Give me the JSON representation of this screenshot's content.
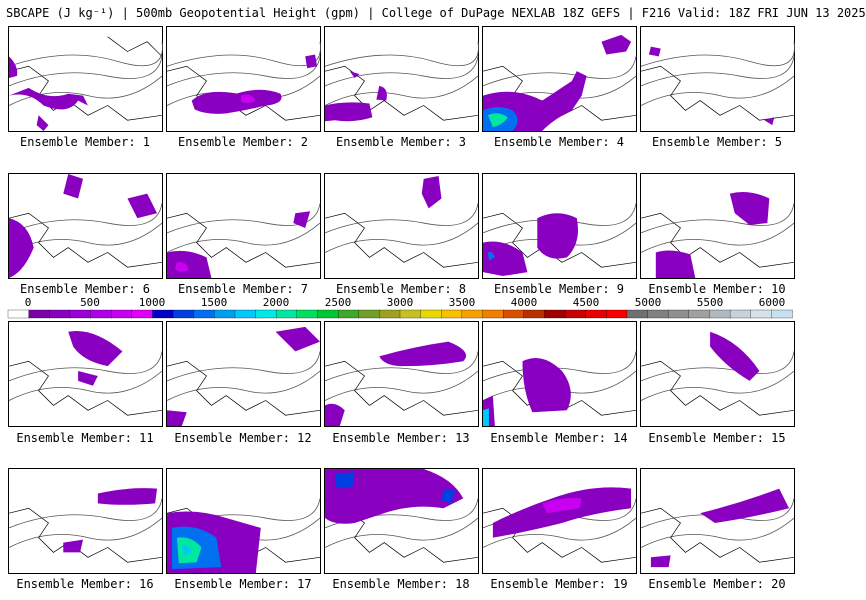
{
  "header": {
    "title": "SBCAPE (J kg⁻¹) | 500mb Geopotential Height (gpm) | College of DuPage NEXLAB 18Z GEFS | F216 Valid: 18Z FRI JUN 13 2025"
  },
  "colorbar": {
    "ticks": [
      "0",
      "500",
      "1000",
      "1500",
      "2000",
      "2500",
      "3000",
      "3500",
      "4000",
      "4500",
      "5000",
      "5500",
      "6000"
    ],
    "colors": [
      "#ffffff",
      "#7a00a8",
      "#8a00c0",
      "#9c00d8",
      "#b000e8",
      "#c800f0",
      "#e000f8",
      "#0000c8",
      "#0040e0",
      "#0070f0",
      "#00a0f0",
      "#00c8f8",
      "#00e8e8",
      "#00e8a0",
      "#00e060",
      "#00c830",
      "#40a828",
      "#70a028",
      "#a0a020",
      "#c8c020",
      "#e8d800",
      "#f8c000",
      "#f8a000",
      "#f08000",
      "#d85000",
      "#b83000",
      "#a00000",
      "#c80000",
      "#e80000",
      "#f80000",
      "#707070",
      "#808080",
      "#909090",
      "#a0a0a0",
      "#b0b8c0",
      "#c8d0d8",
      "#d8e0e8",
      "#c8e0f0"
    ]
  },
  "members": [
    {
      "label": "Ensemble Member: 1"
    },
    {
      "label": "Ensemble Member: 2"
    },
    {
      "label": "Ensemble Member: 3"
    },
    {
      "label": "Ensemble Member: 4"
    },
    {
      "label": "Ensemble Member: 5"
    },
    {
      "label": "Ensemble Member: 6"
    },
    {
      "label": "Ensemble Member: 7"
    },
    {
      "label": "Ensemble Member: 8"
    },
    {
      "label": "Ensemble Member: 9"
    },
    {
      "label": "Ensemble Member: 10"
    },
    {
      "label": "Ensemble Member: 11"
    },
    {
      "label": "Ensemble Member: 12"
    },
    {
      "label": "Ensemble Member: 13"
    },
    {
      "label": "Ensemble Member: 14"
    },
    {
      "label": "Ensemble Member: 15"
    },
    {
      "label": "Ensemble Member: 16"
    },
    {
      "label": "Ensemble Member: 17"
    },
    {
      "label": "Ensemble Member: 18"
    },
    {
      "label": "Ensemble Member: 19"
    },
    {
      "label": "Ensemble Member: 20"
    }
  ]
}
